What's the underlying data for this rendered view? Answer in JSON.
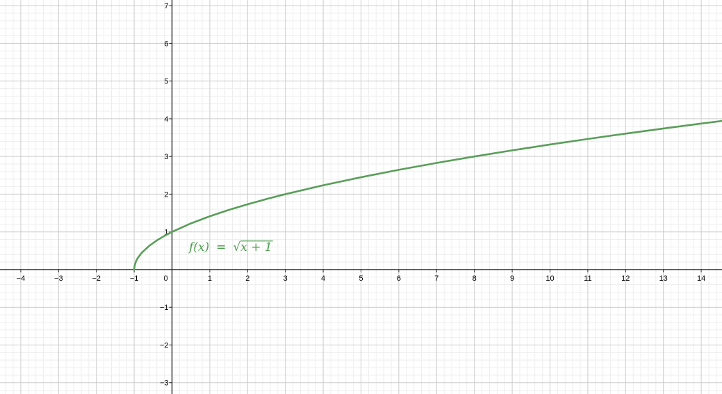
{
  "chart_data": {
    "type": "line",
    "title": "",
    "xlabel": "",
    "ylabel": "",
    "xlim": [
      -4.55,
      14.55
    ],
    "ylim": [
      -3.3,
      7.15
    ],
    "x_ticks": [
      -4,
      -3,
      -2,
      -1,
      0,
      1,
      2,
      3,
      4,
      5,
      6,
      7,
      8,
      9,
      10,
      11,
      12,
      13,
      14
    ],
    "x_tick_labels": [
      "−4",
      "−3",
      "−2",
      "−1",
      "0",
      "1",
      "2",
      "3",
      "4",
      "5",
      "6",
      "7",
      "8",
      "9",
      "10",
      "11",
      "12",
      "13",
      "14"
    ],
    "y_ticks": [
      -3,
      -2,
      -1,
      1,
      2,
      3,
      4,
      5,
      6,
      7
    ],
    "y_tick_labels": [
      "−3",
      "−2",
      "−1",
      "1",
      "2",
      "3",
      "4",
      "5",
      "6",
      "7"
    ],
    "grid": true,
    "minor_grid": true,
    "series": [
      {
        "name": "f(x) = √(x+1)",
        "color": "#5a9e5a",
        "x": [
          -1,
          -0.99,
          -0.95,
          -0.9,
          -0.8,
          -0.6,
          -0.4,
          -0.2,
          0,
          0.5,
          1,
          1.5,
          2,
          2.5,
          3,
          4,
          5,
          6,
          7,
          8,
          9,
          10,
          11,
          12,
          13,
          14,
          14.55
        ],
        "y": [
          0,
          0.1,
          0.224,
          0.316,
          0.447,
          0.632,
          0.775,
          0.894,
          1,
          1.225,
          1.414,
          1.581,
          1.732,
          1.871,
          2,
          2.236,
          2.449,
          2.646,
          2.828,
          3,
          3.162,
          3.317,
          3.464,
          3.606,
          3.742,
          3.873,
          3.943
        ]
      }
    ],
    "annotations": [
      {
        "text_fx": "f(x)",
        "text_eq": "=",
        "text_sqrt": "√",
        "text_radicand": "x + 1",
        "x": 0.45,
        "y": 0.5
      }
    ]
  }
}
